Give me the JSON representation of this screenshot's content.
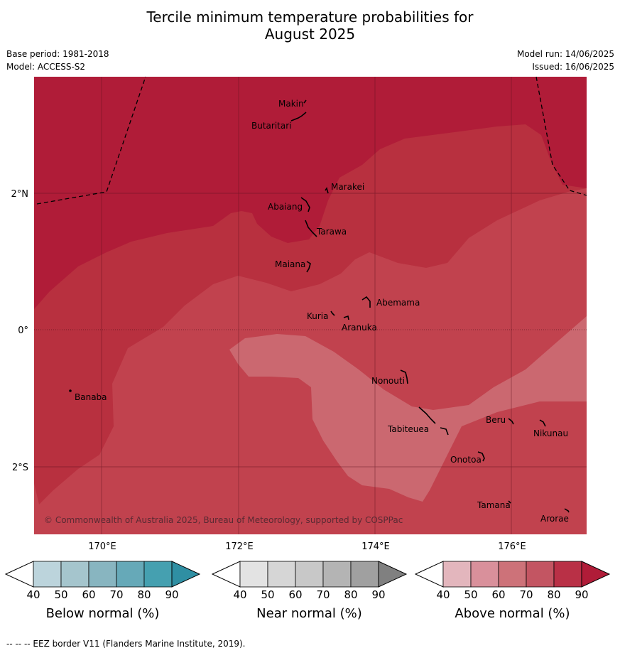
{
  "title_line1": "Tercile minimum temperature probabilities for",
  "title_line2": "August 2025",
  "meta": {
    "base_period": "Base period: 1981-2018",
    "model": "Model: ACCESS-S2",
    "model_run": "Model run: 14/06/2025",
    "issued": "Issued: 16/06/2025"
  },
  "map": {
    "lat_labels": [
      "2°N",
      "0°",
      "2°S"
    ],
    "lon_labels": [
      "170°E",
      "172°E",
      "174°E",
      "176°E"
    ],
    "places": [
      "Makin",
      "Butaritari",
      "Marakei",
      "Abaiang",
      "Tarawa",
      "Maiana",
      "Abemama",
      "Kuria",
      "Aranuka",
      "Nonouti",
      "Banaba",
      "Beru",
      "Nikunau",
      "Tabiteuea",
      "Onotoa",
      "Tamana",
      "Arorae"
    ],
    "copyright": "© Commonwealth of Australia 2025, Bureau of Meteorology, supported by COSPPac",
    "colors": {
      "above_90": "#b01c38",
      "above_80": "#b8303f",
      "above_70": "#c1424e",
      "above_60": "#cb6870"
    }
  },
  "colorbars": [
    {
      "label": "Below normal (%)",
      "ticks": [
        "40",
        "50",
        "60",
        "70",
        "80",
        "90"
      ],
      "colors": [
        "#ffffff",
        "#bcd4dc",
        "#a5c5cd",
        "#88b5c0",
        "#66a9b8",
        "#45a0b0",
        "#2f8fa3"
      ]
    },
    {
      "label": "Near normal (%)",
      "ticks": [
        "40",
        "50",
        "60",
        "70",
        "80",
        "90"
      ],
      "colors": [
        "#ffffff",
        "#e3e3e3",
        "#d6d6d6",
        "#c8c8c8",
        "#b4b4b4",
        "#a0a0a0",
        "#808080"
      ]
    },
    {
      "label": "Above normal (%)",
      "ticks": [
        "40",
        "50",
        "60",
        "70",
        "80",
        "90"
      ],
      "colors": [
        "#ffffff",
        "#e3b6bd",
        "#d9909b",
        "#cd7279",
        "#c35562",
        "#b93046",
        "#b01c38"
      ]
    }
  ],
  "footnote": "--  --  -- EEZ border V11 (Flanders Marine Institute, 2019)."
}
